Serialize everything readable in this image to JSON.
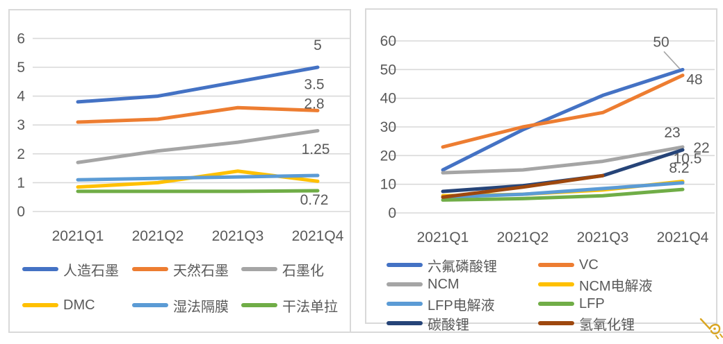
{
  "page": {
    "background": "#FFFFFF",
    "axis_color": "#595959",
    "grid_color": "#D9D9D9",
    "border_color": "#D9D9D9"
  },
  "chart_data": [
    {
      "id": "left-chart",
      "type": "line",
      "title": "",
      "categories": [
        "2021Q1",
        "2021Q2",
        "2021Q3",
        "2021Q4"
      ],
      "y_ticks": [
        0,
        1,
        2,
        3,
        4,
        5,
        6
      ],
      "ylim": [
        0,
        6
      ],
      "grid": true,
      "legend_position": "bottom",
      "series": [
        {
          "name": "人造石墨",
          "color": "#4472C4",
          "values": [
            3.8,
            4.0,
            4.5,
            5.0
          ],
          "end_label": "5",
          "label_offset": [
            0,
            -25
          ]
        },
        {
          "name": "天然石墨",
          "color": "#ED7D31",
          "values": [
            3.1,
            3.2,
            3.6,
            3.5
          ],
          "end_label": "3.5",
          "label_offset": [
            -5,
            -31
          ]
        },
        {
          "name": "石墨化",
          "color": "#A5A5A5",
          "values": [
            1.7,
            2.1,
            2.4,
            2.8
          ],
          "end_label": "2.8",
          "label_offset": [
            -5,
            -32
          ]
        },
        {
          "name": "DMC",
          "color": "#FFC000",
          "values": [
            0.85,
            1.0,
            1.4,
            1.05
          ]
        },
        {
          "name": "湿法隔膜",
          "color": "#5B9BD5",
          "values": [
            1.1,
            1.15,
            1.2,
            1.25
          ],
          "end_label": "1.25",
          "label_offset": [
            -3,
            -31
          ]
        },
        {
          "name": "干法单拉",
          "color": "#70AD47",
          "values": [
            0.7,
            0.7,
            0.7,
            0.72
          ],
          "end_label": "0.72",
          "label_offset": [
            -5,
            20
          ]
        }
      ]
    },
    {
      "id": "right-chart",
      "type": "line",
      "title": "",
      "categories": [
        "2021Q1",
        "2021Q2",
        "2021Q3",
        "2021Q4"
      ],
      "y_ticks": [
        0,
        10,
        20,
        30,
        40,
        50,
        60
      ],
      "ylim": [
        0,
        60
      ],
      "grid": true,
      "legend_position": "bottom",
      "series": [
        {
          "name": "六氟磷酸锂",
          "color": "#4472C4",
          "values": [
            15,
            29,
            41,
            50
          ],
          "end_label": "50",
          "label_offset": [
            -31,
            -33
          ],
          "leader": true
        },
        {
          "name": "VC",
          "color": "#ED7D31",
          "values": [
            23,
            30,
            35,
            48
          ],
          "end_label": "48",
          "label_offset": [
            17,
            13
          ]
        },
        {
          "name": "NCM",
          "color": "#A5A5A5",
          "values": [
            14,
            15,
            18,
            23
          ],
          "end_label": "23",
          "label_offset": [
            -15,
            -14
          ]
        },
        {
          "name": "NCM电解液",
          "color": "#FFC000",
          "values": [
            6,
            6.5,
            8,
            11
          ]
        },
        {
          "name": "LFP电解液",
          "color": "#5B9BD5",
          "values": [
            5.5,
            6.5,
            8.5,
            10.5
          ],
          "end_label": "10.5",
          "label_offset": [
            7,
            -28
          ]
        },
        {
          "name": "LFP",
          "color": "#70AD47",
          "values": [
            4.5,
            5,
            6,
            8.2
          ],
          "end_label": "8.2",
          "label_offset": [
            -5,
            -24
          ]
        },
        {
          "name": "碳酸锂",
          "color": "#264478",
          "values": [
            7.5,
            9.5,
            13,
            22
          ],
          "end_label": "22",
          "label_offset": [
            27,
            4
          ]
        },
        {
          "name": "氢氧化锂",
          "color": "#9E480E",
          "values": [
            5.5,
            9,
            13,
            null
          ]
        }
      ]
    }
  ],
  "watermark": {
    "icon": "hand-stamp-icon",
    "color": "#D9A521"
  }
}
